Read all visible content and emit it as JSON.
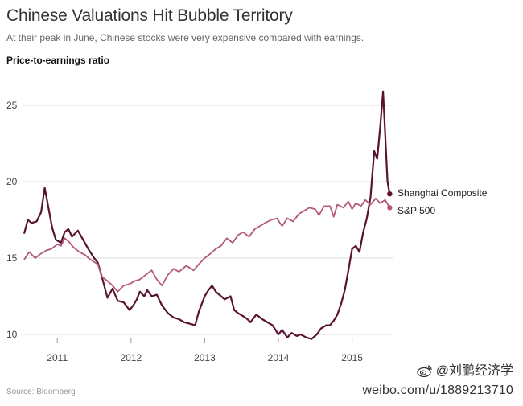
{
  "chart_data": {
    "type": "line",
    "title": "Chinese Valuations Hit Bubble Territory",
    "subtitle": "At their peak in June, Chinese stocks were very expensive compared with earnings.",
    "ylabel": "Price-to-earnings ratio",
    "xlabel": "",
    "ylim": [
      9.5,
      26.5
    ],
    "xlim": [
      2010.55,
      2015.55
    ],
    "yticks": [
      10,
      15,
      20,
      25
    ],
    "xticks": [
      {
        "value": 2011.0,
        "label": "2011"
      },
      {
        "value": 2012.0,
        "label": "2012"
      },
      {
        "value": 2013.0,
        "label": "2013"
      },
      {
        "value": 2014.0,
        "label": "2014"
      },
      {
        "value": 2015.0,
        "label": "2015"
      }
    ],
    "grid": "horizontal",
    "legend_placement": "right end of lines",
    "series": [
      {
        "name": "Shanghai Composite",
        "color": "#5a1232",
        "points": [
          [
            2010.55,
            16.6
          ],
          [
            2010.6,
            17.5
          ],
          [
            2010.65,
            17.3
          ],
          [
            2010.72,
            17.4
          ],
          [
            2010.78,
            18.0
          ],
          [
            2010.83,
            19.6
          ],
          [
            2010.88,
            18.3
          ],
          [
            2010.93,
            17.0
          ],
          [
            2010.98,
            16.2
          ],
          [
            2011.05,
            16.0
          ],
          [
            2011.1,
            16.7
          ],
          [
            2011.15,
            16.9
          ],
          [
            2011.2,
            16.4
          ],
          [
            2011.28,
            16.8
          ],
          [
            2011.35,
            16.2
          ],
          [
            2011.42,
            15.6
          ],
          [
            2011.5,
            15.0
          ],
          [
            2011.55,
            14.7
          ],
          [
            2011.62,
            13.5
          ],
          [
            2011.68,
            12.4
          ],
          [
            2011.75,
            13.0
          ],
          [
            2011.82,
            12.2
          ],
          [
            2011.9,
            12.1
          ],
          [
            2011.98,
            11.6
          ],
          [
            2012.03,
            11.9
          ],
          [
            2012.08,
            12.3
          ],
          [
            2012.12,
            12.8
          ],
          [
            2012.18,
            12.5
          ],
          [
            2012.22,
            12.9
          ],
          [
            2012.28,
            12.5
          ],
          [
            2012.35,
            12.6
          ],
          [
            2012.42,
            11.9
          ],
          [
            2012.5,
            11.4
          ],
          [
            2012.58,
            11.1
          ],
          [
            2012.65,
            11.0
          ],
          [
            2012.72,
            10.8
          ],
          [
            2012.8,
            10.7
          ],
          [
            2012.87,
            10.6
          ],
          [
            2012.92,
            11.5
          ],
          [
            2013.0,
            12.5
          ],
          [
            2013.05,
            12.9
          ],
          [
            2013.1,
            13.2
          ],
          [
            2013.15,
            12.8
          ],
          [
            2013.2,
            12.6
          ],
          [
            2013.27,
            12.3
          ],
          [
            2013.35,
            12.5
          ],
          [
            2013.4,
            11.6
          ],
          [
            2013.45,
            11.4
          ],
          [
            2013.52,
            11.2
          ],
          [
            2013.58,
            11.0
          ],
          [
            2013.62,
            10.8
          ],
          [
            2013.7,
            11.3
          ],
          [
            2013.78,
            11.0
          ],
          [
            2013.85,
            10.8
          ],
          [
            2013.92,
            10.6
          ],
          [
            2014.0,
            10.0
          ],
          [
            2014.05,
            10.3
          ],
          [
            2014.12,
            9.8
          ],
          [
            2014.18,
            10.1
          ],
          [
            2014.25,
            9.9
          ],
          [
            2014.3,
            10.0
          ],
          [
            2014.38,
            9.8
          ],
          [
            2014.45,
            9.7
          ],
          [
            2014.52,
            10.0
          ],
          [
            2014.58,
            10.4
          ],
          [
            2014.65,
            10.6
          ],
          [
            2014.7,
            10.6
          ],
          [
            2014.75,
            10.9
          ],
          [
            2014.8,
            11.3
          ],
          [
            2014.85,
            12.0
          ],
          [
            2014.9,
            12.9
          ],
          [
            2014.95,
            14.2
          ],
          [
            2015.0,
            15.6
          ],
          [
            2015.05,
            15.8
          ],
          [
            2015.1,
            15.4
          ],
          [
            2015.15,
            16.7
          ],
          [
            2015.2,
            17.6
          ],
          [
            2015.25,
            19.0
          ],
          [
            2015.3,
            22.0
          ],
          [
            2015.34,
            21.5
          ],
          [
            2015.38,
            23.5
          ],
          [
            2015.42,
            25.9
          ],
          [
            2015.45,
            23.0
          ],
          [
            2015.48,
            20.0
          ],
          [
            2015.51,
            19.2
          ]
        ]
      },
      {
        "name": "S&P 500",
        "color": "#b5577c",
        "points": [
          [
            2010.55,
            14.9
          ],
          [
            2010.62,
            15.4
          ],
          [
            2010.7,
            15.0
          ],
          [
            2010.78,
            15.3
          ],
          [
            2010.85,
            15.5
          ],
          [
            2010.92,
            15.6
          ],
          [
            2011.0,
            15.9
          ],
          [
            2011.05,
            15.8
          ],
          [
            2011.1,
            16.3
          ],
          [
            2011.15,
            16.1
          ],
          [
            2011.22,
            15.7
          ],
          [
            2011.3,
            15.4
          ],
          [
            2011.38,
            15.2
          ],
          [
            2011.45,
            14.9
          ],
          [
            2011.55,
            14.6
          ],
          [
            2011.6,
            13.8
          ],
          [
            2011.68,
            13.5
          ],
          [
            2011.75,
            13.2
          ],
          [
            2011.82,
            12.8
          ],
          [
            2011.9,
            13.2
          ],
          [
            2011.98,
            13.3
          ],
          [
            2012.05,
            13.5
          ],
          [
            2012.12,
            13.6
          ],
          [
            2012.2,
            13.9
          ],
          [
            2012.28,
            14.2
          ],
          [
            2012.35,
            13.6
          ],
          [
            2012.42,
            13.2
          ],
          [
            2012.5,
            13.9
          ],
          [
            2012.58,
            14.3
          ],
          [
            2012.65,
            14.1
          ],
          [
            2012.75,
            14.5
          ],
          [
            2012.85,
            14.2
          ],
          [
            2012.92,
            14.6
          ],
          [
            2013.0,
            15.0
          ],
          [
            2013.08,
            15.3
          ],
          [
            2013.15,
            15.6
          ],
          [
            2013.22,
            15.8
          ],
          [
            2013.3,
            16.3
          ],
          [
            2013.38,
            16.0
          ],
          [
            2013.45,
            16.5
          ],
          [
            2013.52,
            16.7
          ],
          [
            2013.6,
            16.4
          ],
          [
            2013.68,
            16.9
          ],
          [
            2013.75,
            17.1
          ],
          [
            2013.82,
            17.3
          ],
          [
            2013.9,
            17.5
          ],
          [
            2013.98,
            17.6
          ],
          [
            2014.05,
            17.1
          ],
          [
            2014.12,
            17.6
          ],
          [
            2014.2,
            17.4
          ],
          [
            2014.28,
            17.9
          ],
          [
            2014.35,
            18.1
          ],
          [
            2014.42,
            18.3
          ],
          [
            2014.5,
            18.2
          ],
          [
            2014.55,
            17.8
          ],
          [
            2014.62,
            18.4
          ],
          [
            2014.7,
            18.4
          ],
          [
            2014.75,
            17.7
          ],
          [
            2014.8,
            18.5
          ],
          [
            2014.88,
            18.3
          ],
          [
            2014.95,
            18.7
          ],
          [
            2015.0,
            18.2
          ],
          [
            2015.05,
            18.6
          ],
          [
            2015.12,
            18.4
          ],
          [
            2015.18,
            18.8
          ],
          [
            2015.25,
            18.5
          ],
          [
            2015.32,
            18.9
          ],
          [
            2015.38,
            18.6
          ],
          [
            2015.45,
            18.8
          ],
          [
            2015.51,
            18.3
          ]
        ]
      }
    ],
    "source": "Source: Bloomberg"
  },
  "watermark": {
    "handle": "@刘鹏经济学",
    "url": "weibo.com/u/1889213710"
  }
}
